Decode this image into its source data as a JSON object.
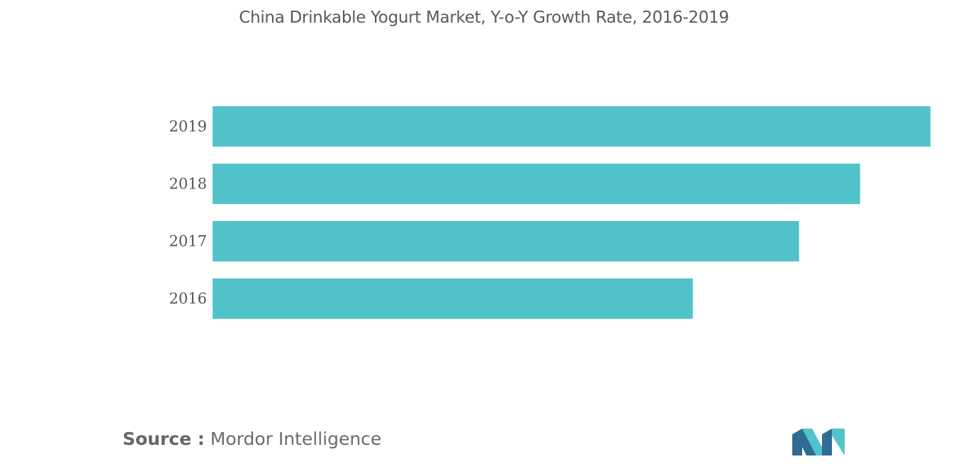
{
  "chart_data": {
    "type": "bar",
    "orientation": "horizontal",
    "title": "China Drinkable Yogurt Market, Y-o-Y Growth Rate, 2016-2019",
    "categories": [
      "2019",
      "2018",
      "2017",
      "2016"
    ],
    "values": [
      100,
      90.2,
      81.7,
      66.9
    ],
    "xlim": [
      0,
      100
    ],
    "bar_color": "#52c3ca",
    "grid": false,
    "legend": "none"
  },
  "source": {
    "label": "Source :",
    "text": "Mordor Intelligence"
  },
  "logo": {
    "icon": "mordor-intelligence-logo-icon",
    "colors": [
      "#2e6c94",
      "#52c3ca"
    ]
  }
}
